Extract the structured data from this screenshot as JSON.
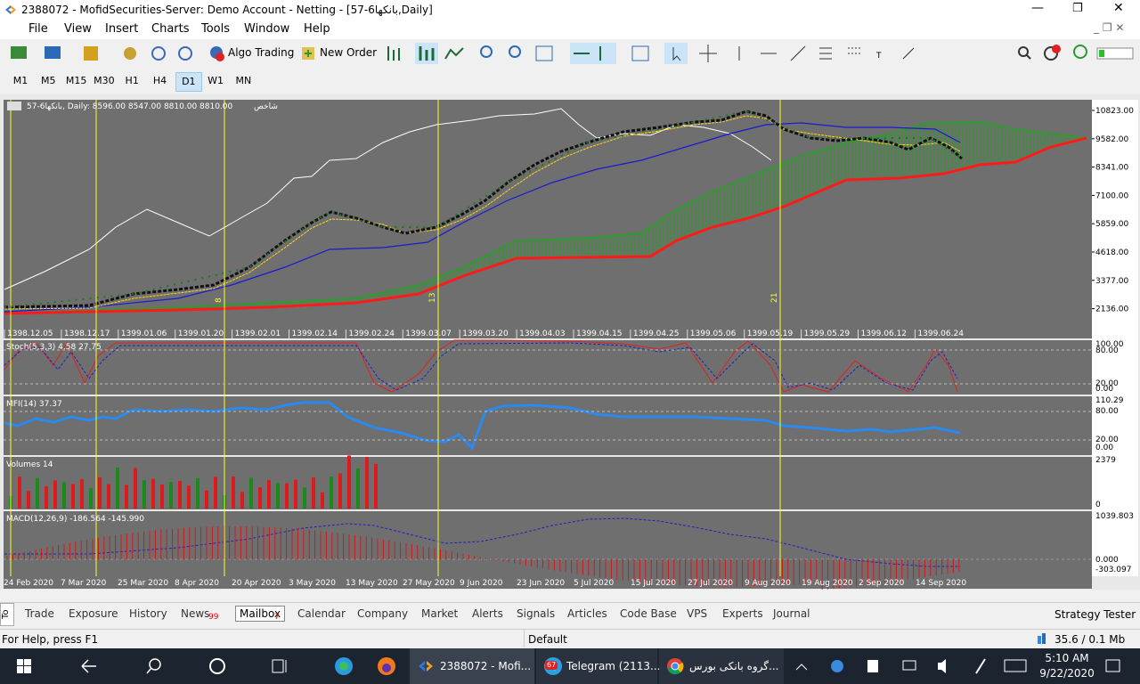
{
  "title_bar": {
    "title": "2388072 - MofidSecurities-Server: Demo Account - Netting - [57-6بانکها,Daily]"
  },
  "menu": [
    "File",
    "View",
    "Insert",
    "Charts",
    "Tools",
    "Window",
    "Help"
  ],
  "toolbar": {
    "algo_trading": "Algo Trading",
    "new_order": "New Order"
  },
  "timeframes": [
    "M1",
    "M5",
    "M15",
    "M30",
    "H1",
    "H4",
    "D1",
    "W1",
    "MN"
  ],
  "chart": {
    "header": "57-6بانکها, Daily:  8596.00 8547.00 8810.00 8810.00",
    "header_note": "شاخص",
    "price_labels": [
      "10823.00",
      "9582.00",
      "8341.00",
      "7100.00",
      "5859.00",
      "4618.00",
      "3377.00",
      "2136.00"
    ],
    "hijri_dates": [
      "1398.12.05",
      "1398.12.17",
      "1399.01.06",
      "1399.01.20",
      "1399.02.01",
      "1399.02.14",
      "1399.02.24",
      "1399.03.07",
      "1399.03.20",
      "1399.04.03",
      "1399.04.15",
      "1399.04.25",
      "1399.05.06",
      "1399.05.19",
      "1399.05.29",
      "1399.06.12",
      "1399.06.24"
    ],
    "vline_labels": [
      "8",
      "13",
      "21"
    ],
    "stoch": {
      "label": "Stoch(5,3,3) 4.58 27.75",
      "levels": [
        "100.00",
        "80.00",
        "20.00",
        "0.00"
      ]
    },
    "mfi": {
      "label": "MFI(14) 37.37",
      "levels": [
        "110.29",
        "80.00",
        "20.00",
        "0.00"
      ]
    },
    "volumes": {
      "label": "Volumes 14",
      "levels": [
        "2379",
        "0"
      ]
    },
    "macd": {
      "label": "MACD(12,26,9) -186.564 -145.990",
      "levels": [
        "1039.803",
        "0.000",
        "-303.097"
      ]
    },
    "dates": [
      "24 Feb 2020",
      "7 Mar 2020",
      "25 Mar 2020",
      "8 Apr 2020",
      "20 Apr 2020",
      "3 May 2020",
      "13 May 2020",
      "27 May 2020",
      "9 Jun 2020",
      "23 Jun 2020",
      "5 Jul 2020",
      "15 Jul 2020",
      "27 Jul 2020",
      "9 Aug 2020",
      "19 Aug 2020",
      "2 Sep 2020",
      "14 Sep 2020"
    ]
  },
  "tabs": {
    "items": [
      "Trade",
      "Exposure",
      "History",
      "News",
      "Mailbox",
      "Calendar",
      "Company",
      "Market",
      "Alerts",
      "Signals",
      "Articles",
      "Code Base",
      "VPS",
      "Experts",
      "Journal"
    ],
    "news_badge": "99",
    "mailbox_badge": "7",
    "strategy_tester": "Strategy Tester",
    "toolbox": "To"
  },
  "status": {
    "help": "For Help, press F1",
    "profile": "Default",
    "traffic": "35.6 / 0.1 Mb"
  },
  "taskbar": {
    "items": [
      "2388072 - Mofi...",
      "Telegram (2113...",
      "گروه بانکی بورس..."
    ],
    "telegram_badge": "67",
    "time": "5:10 AM",
    "date": "9/22/2020"
  }
}
